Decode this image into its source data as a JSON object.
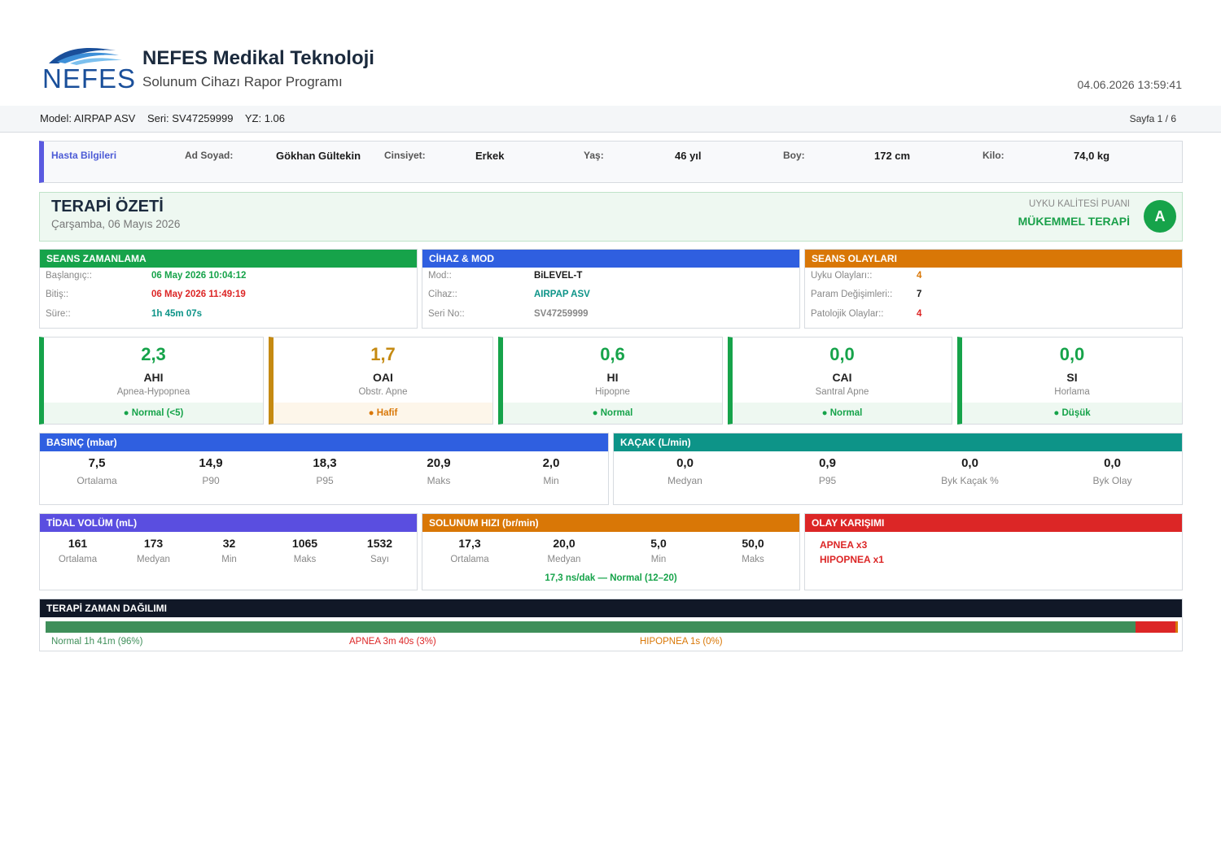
{
  "header": {
    "logo_text": "NEFES",
    "company": "NEFES Medikal Teknoloji",
    "subtitle": "Solunum Cihazı Rapor Programı",
    "datetime": "04.06.2026  13:59:41"
  },
  "device_strip": {
    "model": "Model: AIRPAP ASV",
    "serial": "Seri: SV47259999",
    "firmware": "YZ: 1.06",
    "page": "Sayfa 1 / 6"
  },
  "patient": {
    "heading": "Hasta Bilgileri",
    "name_label": "Ad Soyad:",
    "name": "Gökhan Gültekin",
    "gender_label": "Cinsiyet:",
    "gender": "Erkek",
    "age_label": "Yaş:",
    "age": "46 yıl",
    "height_label": "Boy:",
    "height": "172 cm",
    "weight_label": "Kilo:",
    "weight": "74,0 kg"
  },
  "summary": {
    "title": "TERAPİ ÖZETİ",
    "date": "Çarşamba, 06 Mayıs 2026",
    "quality_label": "UYKU KALİTESİ PUANI",
    "quality_value": "MÜKEMMEL TERAPİ",
    "grade": "A"
  },
  "session_timing": {
    "title": "SEANS ZAMANLAMA",
    "rows": [
      {
        "label": "Başlangıç::",
        "value": "06 May 2026  10:04:12"
      },
      {
        "label": "Bitiş::",
        "value": "06 May 2026  11:49:19"
      },
      {
        "label": "Süre::",
        "value": "1h 45m 07s"
      }
    ]
  },
  "device_mode": {
    "title": "CİHAZ & MOD",
    "rows": [
      {
        "label": "Mod::",
        "value": "BiLEVEL-T"
      },
      {
        "label": "Cihaz::",
        "value": "AIRPAP ASV"
      },
      {
        "label": "Seri No::",
        "value": "SV47259999"
      }
    ]
  },
  "session_events": {
    "title": "SEANS OLAYLARI",
    "rows": [
      {
        "label": "Uyku Olayları::",
        "value": "4"
      },
      {
        "label": "Param Değişimleri::",
        "value": "7"
      },
      {
        "label": "Patolojik Olaylar::",
        "value": "4"
      }
    ]
  },
  "metrics": [
    {
      "value": "2,3",
      "code": "AHI",
      "desc": "Apnea-Hypopnea",
      "status": "● Normal (<5)"
    },
    {
      "value": "1,7",
      "code": "OAI",
      "desc": "Obstr. Apne",
      "status": "● Hafif"
    },
    {
      "value": "0,6",
      "code": "HI",
      "desc": "Hipopne",
      "status": "● Normal"
    },
    {
      "value": "0,0",
      "code": "CAI",
      "desc": "Santral Apne",
      "status": "● Normal"
    },
    {
      "value": "0,0",
      "code": "SI",
      "desc": "Horlama",
      "status": "● Düşük"
    }
  ],
  "pressure": {
    "title": "BASINÇ  (mbar)",
    "stats": [
      {
        "value": "7,5",
        "label": "Ortalama"
      },
      {
        "value": "14,9",
        "label": "P90"
      },
      {
        "value": "18,3",
        "label": "P95"
      },
      {
        "value": "20,9",
        "label": "Maks"
      },
      {
        "value": "2,0",
        "label": "Min"
      }
    ]
  },
  "leak": {
    "title": "KAÇAK  (L/min)",
    "stats": [
      {
        "value": "0,0",
        "label": "Medyan"
      },
      {
        "value": "0,9",
        "label": "P95"
      },
      {
        "value": "0,0",
        "label": "Byk Kaçak %"
      },
      {
        "value": "0,0",
        "label": "Byk Olay"
      }
    ]
  },
  "tidal": {
    "title": "TİDAL VOLÜM  (mL)",
    "stats": [
      {
        "value": "161",
        "label": "Ortalama"
      },
      {
        "value": "173",
        "label": "Medyan"
      },
      {
        "value": "32",
        "label": "Min"
      },
      {
        "value": "1065",
        "label": "Maks"
      },
      {
        "value": "1532",
        "label": "Sayı"
      }
    ]
  },
  "resp_rate": {
    "title": "SOLUNUM HIZI  (br/min)",
    "stats": [
      {
        "value": "17,3",
        "label": "Ortalama"
      },
      {
        "value": "20,0",
        "label": "Medyan"
      },
      {
        "value": "5,0",
        "label": "Min"
      },
      {
        "value": "50,0",
        "label": "Maks"
      }
    ],
    "note": "17,3 ns/dak — Normal (12–20)"
  },
  "event_mix": {
    "title": "OLAY KARIŞIMI",
    "items": [
      "APNEA  x3",
      "HIPOPNEA  x1"
    ]
  },
  "timeline": {
    "title": "TERAPİ ZAMAN DAĞILIMI",
    "segments": [
      {
        "label": "Normal  1h 41m  (96%)",
        "fraction": 0.963,
        "color": "#3f8f5a"
      },
      {
        "label": "APNEA  3m 40s  (3%)",
        "fraction": 0.035,
        "color": "#dc2626"
      },
      {
        "label": "HIPOPNEA  1s  (0%)",
        "fraction": 0.002,
        "color": "#d97706"
      }
    ]
  },
  "colors": {
    "green": "#16a34a",
    "blue": "#2f5fe0",
    "orange": "#d97706",
    "teal": "#0d9488",
    "indigo": "#5a4ee0",
    "red": "#dc2626",
    "dark": "#111827",
    "amber": "#c58a12"
  }
}
